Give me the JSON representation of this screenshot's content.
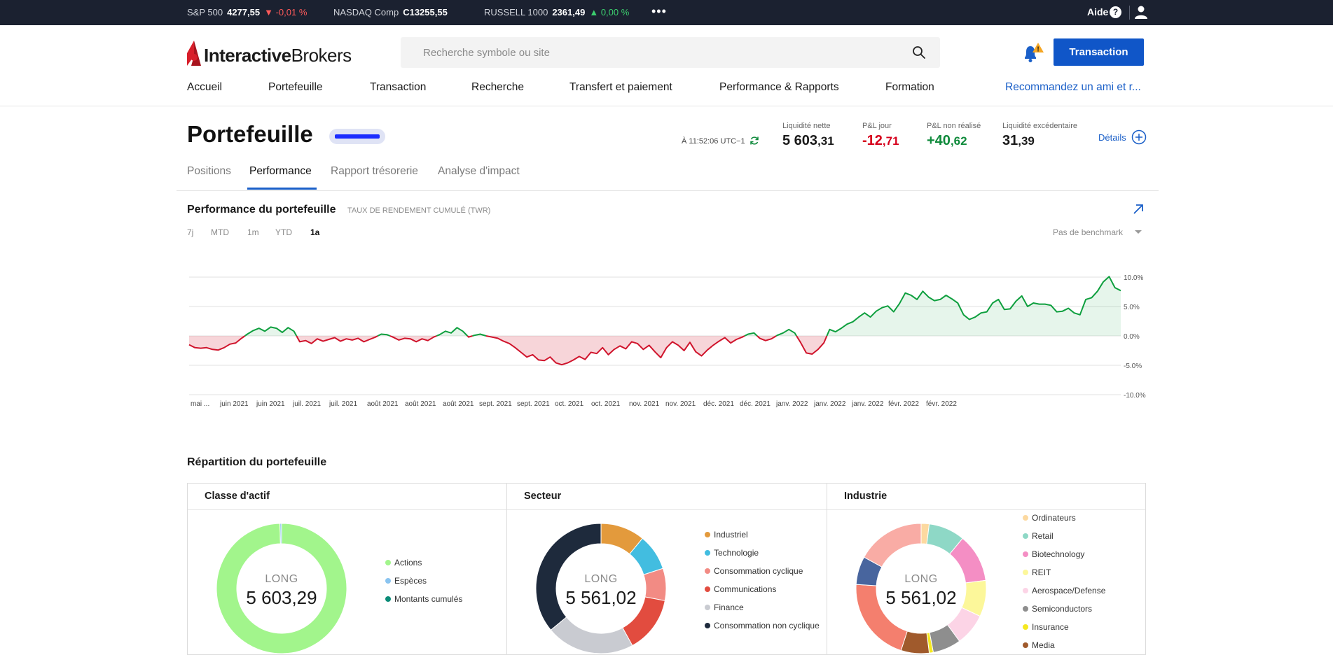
{
  "ticker": {
    "items": [
      {
        "name": "S&P 500",
        "value": "4277,55",
        "change": "-0,01 %",
        "direction": "down"
      },
      {
        "name": "NASDAQ Comp",
        "value": "C13255,55",
        "change": "",
        "direction": ""
      },
      {
        "name": "RUSSELL 1000",
        "value": "2361,49",
        "change": "0,00 %",
        "direction": "up"
      }
    ],
    "more": "•••",
    "help_label": "Aide",
    "help_glyph": "?"
  },
  "header": {
    "logo_bold": "Interactive",
    "logo_regular": "Brokers",
    "search_placeholder": "Recherche symbole ou site",
    "trade_button": "Transaction",
    "notification_badge": "!"
  },
  "nav": {
    "items": [
      "Accueil",
      "Portefeuille",
      "Transaction",
      "Recherche",
      "Transfert et paiement",
      "Performance & Rapports",
      "Formation"
    ],
    "referral": "Recommandez un ami et r..."
  },
  "page": {
    "title": "Portefeuille",
    "timestamp": "À 11:52:06 UTC−1",
    "kpis": [
      {
        "label": "Liquidité nette",
        "int": "5 603",
        "dec": ",31",
        "tone": ""
      },
      {
        "label": "P&L jour",
        "int": "-12",
        "dec": ",71",
        "tone": "neg"
      },
      {
        "label": "P&L non réalisé",
        "int": "+40",
        "dec": ",62",
        "tone": "pos"
      },
      {
        "label": "Liquidité excédentaire",
        "int": "31",
        "dec": ",39",
        "tone": ""
      }
    ],
    "details": "Détails",
    "tabs": [
      "Positions",
      "Performance",
      "Rapport trésorerie",
      "Analyse d'impact"
    ],
    "active_tab": 1
  },
  "performance": {
    "title": "Performance du portefeuille",
    "subtitle": "TAUX DE RENDEMENT CUMULÉ (TWR)",
    "ranges": [
      "7j",
      "MTD",
      "1m",
      "YTD",
      "1a"
    ],
    "selected_range": "1a",
    "benchmark": "Pas de benchmark"
  },
  "chart_data": {
    "type": "area",
    "title": "",
    "xlabel": "",
    "ylabel": "",
    "ylim": [
      -10,
      10
    ],
    "y_ticks": [
      "10.0%",
      "5.0%",
      "0.0%",
      "-5.0%",
      "-10.0%"
    ],
    "y_tick_values": [
      10,
      5,
      0,
      -5,
      -10
    ],
    "x_tick_labels": [
      "mai ...",
      "juin 2021",
      "juin 2021",
      "juil. 2021",
      "juil. 2021",
      "août 2021",
      "août 2021",
      "août 2021",
      "sept. 2021",
      "sept. 2021",
      "oct. 2021",
      "oct. 2021",
      "nov. 2021",
      "nov. 2021",
      "déc. 2021",
      "déc. 2021",
      "janv. 2022",
      "janv. 2022",
      "janv. 2022",
      "févr. 2022",
      "févr. 2022"
    ],
    "positive_color": "#0e9f3e",
    "negative_color": "#d0142c",
    "grid": true,
    "series": [
      {
        "values": [
          -1.5,
          -2.0,
          -2.1,
          -2.0,
          -2.3,
          -2.4,
          -2.0,
          -1.4,
          -1.2,
          -0.4,
          0.3,
          0.9,
          1.3,
          0.8,
          1.5,
          1.3,
          0.6,
          1.4,
          0.8,
          -1.0,
          -0.8,
          -1.3,
          -0.5,
          -0.9,
          -0.6,
          -0.3,
          -0.9,
          -0.5,
          -0.7,
          -0.4,
          -1.0,
          -0.6,
          -0.2,
          0.3,
          0.2,
          -0.2,
          -0.7,
          -0.4,
          -0.5,
          -1.0,
          -0.5,
          -0.8,
          -0.2,
          0.2,
          0.8,
          0.5,
          1.4,
          0.8,
          -0.2,
          0.1,
          0.3,
          0.0,
          -0.2,
          -0.4,
          -0.9,
          -1.3,
          -2.0,
          -2.8,
          -3.6,
          -3.2,
          -4.1,
          -4.2,
          -3.6,
          -4.6,
          -4.9,
          -4.6,
          -4.1,
          -3.5,
          -4.0,
          -2.8,
          -3.0,
          -2.0,
          -3.2,
          -2.3,
          -1.7,
          -2.2,
          -1.0,
          -1.3,
          -2.3,
          -1.6,
          -2.7,
          -3.7,
          -2.0,
          -1.0,
          -1.6,
          -2.5,
          -1.1,
          -2.7,
          -3.4,
          -2.4,
          -1.6,
          -0.9,
          -0.3,
          -1.2,
          -0.6,
          -0.2,
          0.3,
          0.5,
          -0.4,
          -0.8,
          -0.5,
          0.1,
          0.5,
          1.1,
          0.5,
          -1.1,
          -2.9,
          -3.1,
          -2.3,
          -1.2,
          1.1,
          0.7,
          1.3,
          2.0,
          2.4,
          3.2,
          3.9,
          3.2,
          4.2,
          4.8,
          5.1,
          4.1,
          5.5,
          7.3,
          6.9,
          6.2,
          7.6,
          6.6,
          6.0,
          6.2,
          6.9,
          6.3,
          5.6,
          3.6,
          2.8,
          3.2,
          3.9,
          4.1,
          5.6,
          6.2,
          4.5,
          4.6,
          5.9,
          6.8,
          5.0,
          5.6,
          5.4,
          5.4,
          5.2,
          4.1,
          4.2,
          4.7,
          3.9,
          3.6,
          6.2,
          6.5,
          7.6,
          9.2,
          10.1,
          8.2,
          7.7
        ]
      }
    ]
  },
  "allocation": {
    "title": "Répartition du portefeuille",
    "center_label": "LONG",
    "panels": [
      {
        "title": "Classe d'actif",
        "total": "5 603,29",
        "legend": [
          {
            "label": "Actions",
            "color": "#a2f58c"
          },
          {
            "label": "Espèces",
            "color": "#8ac4f0"
          },
          {
            "label": "Montants cumulés",
            "color": "#0a8c78"
          }
        ],
        "slices": [
          {
            "value": 99.6,
            "color": "#a2f58c"
          },
          {
            "value": 0.4,
            "color": "#8ac4f0"
          }
        ]
      },
      {
        "title": "Secteur",
        "total": "5 561,02",
        "legend": [
          {
            "label": "Industriel",
            "color": "#e39a3c"
          },
          {
            "label": "Technologie",
            "color": "#42bde0"
          },
          {
            "label": "Consommation cyclique",
            "color": "#f28b84"
          },
          {
            "label": "Communications",
            "color": "#e24c3f"
          },
          {
            "label": "Finance",
            "color": "#c9cbd1"
          },
          {
            "label": "Consommation non cyclique",
            "color": "#1e2a3c"
          }
        ],
        "slices": [
          {
            "value": 11,
            "color": "#e39a3c"
          },
          {
            "value": 9,
            "color": "#42bde0"
          },
          {
            "value": 8,
            "color": "#f28b84"
          },
          {
            "value": 14,
            "color": "#e24c3f"
          },
          {
            "value": 22,
            "color": "#c9cbd1"
          },
          {
            "value": 36,
            "color": "#1e2a3c"
          }
        ]
      },
      {
        "title": "Industrie",
        "total": "5 561,02",
        "legend": [
          {
            "label": "Ordinateurs",
            "color": "#fcd9a0"
          },
          {
            "label": "Retail",
            "color": "#8ed8c6"
          },
          {
            "label": "Biotechnology",
            "color": "#f48ec4"
          },
          {
            "label": "REIT",
            "color": "#fcf79a"
          },
          {
            "label": "Aerospace/Defense",
            "color": "#fcd4e6"
          },
          {
            "label": "Semiconductors",
            "color": "#8e8e8e"
          },
          {
            "label": "Insurance",
            "color": "#f5e820"
          },
          {
            "label": "Media",
            "color": "#a05a2c"
          }
        ],
        "slices": [
          {
            "value": 2,
            "color": "#fcd9a0"
          },
          {
            "value": 9,
            "color": "#8ed8c6"
          },
          {
            "value": 12,
            "color": "#f48ec4"
          },
          {
            "value": 9,
            "color": "#fcf79a"
          },
          {
            "value": 8,
            "color": "#fcd4e6"
          },
          {
            "value": 7,
            "color": "#8e8e8e"
          },
          {
            "value": 1,
            "color": "#f5e820"
          },
          {
            "value": 7,
            "color": "#a05a2c"
          },
          {
            "value": 21,
            "color": "#f47f6e"
          },
          {
            "value": 7,
            "color": "#48659e"
          },
          {
            "value": 17,
            "color": "#f9aca5"
          }
        ]
      }
    ]
  }
}
